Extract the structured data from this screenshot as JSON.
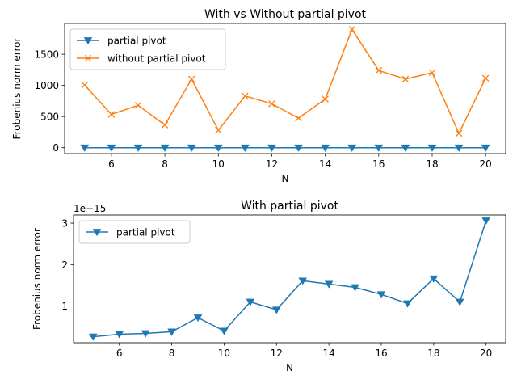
{
  "chart_data": [
    {
      "type": "line",
      "title": "With vs Without partial pivot",
      "xlabel": "N",
      "ylabel": "Frobenius norm error",
      "x": [
        5,
        6,
        7,
        8,
        9,
        10,
        11,
        12,
        13,
        14,
        15,
        16,
        17,
        18,
        19,
        20
      ],
      "xlim": [
        4.25,
        20.75
      ],
      "ylim": [
        -95,
        1995
      ],
      "xticks": [
        6,
        8,
        10,
        12,
        14,
        16,
        18,
        20
      ],
      "yticks": [
        0,
        500,
        1000,
        1500
      ],
      "legend_position": "upper-left",
      "grid": false,
      "series": [
        {
          "name": "partial pivot",
          "color": "#1f77b4",
          "marker": "triangle-down",
          "values": [
            0,
            0,
            0,
            0,
            0,
            0,
            0,
            0,
            0,
            0,
            0,
            0,
            0,
            0,
            0,
            0
          ]
        },
        {
          "name": "without partial pivot",
          "color": "#ff7f0e",
          "marker": "x",
          "values": [
            1005,
            535,
            680,
            365,
            1100,
            280,
            830,
            705,
            475,
            780,
            1900,
            1240,
            1100,
            1205,
            230,
            1115
          ]
        }
      ]
    },
    {
      "type": "line",
      "title": "With partial pivot",
      "xlabel": "N",
      "ylabel": "Frobenius norm error",
      "offset_label": "1e−15",
      "x": [
        5,
        6,
        7,
        8,
        9,
        10,
        11,
        12,
        13,
        14,
        15,
        16,
        17,
        18,
        19,
        20
      ],
      "xlim": [
        4.25,
        20.75
      ],
      "ylim": [
        0.115,
        3.195
      ],
      "xticks": [
        6,
        8,
        10,
        12,
        14,
        16,
        18,
        20
      ],
      "yticks": [
        1,
        2,
        3
      ],
      "legend_position": "upper-left",
      "grid": false,
      "series": [
        {
          "name": "partial pivot",
          "color": "#1f77b4",
          "marker": "triangle-down",
          "values": [
            0.26,
            0.32,
            0.34,
            0.38,
            0.72,
            0.4,
            1.1,
            0.91,
            1.61,
            1.53,
            1.45,
            1.28,
            1.06,
            1.66,
            1.1,
            3.06
          ]
        }
      ]
    }
  ]
}
